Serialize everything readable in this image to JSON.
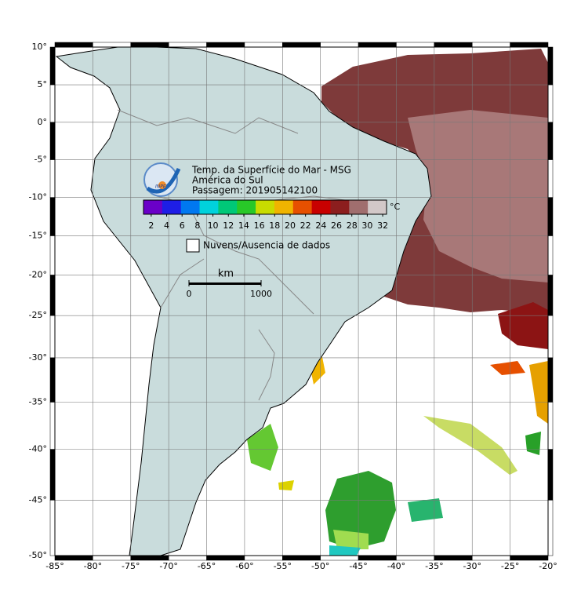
{
  "map": {
    "title_lines": [
      "Temp. da Superfície do Mar - MSG",
      "América do Sul",
      "Passagem: 201905142100"
    ],
    "logo_text": "INPE",
    "xlim": [
      -85,
      -20
    ],
    "ylim": [
      -50,
      10
    ],
    "projection": "mercator",
    "xticks": [
      {
        "value": -85,
        "label": "-85°"
      },
      {
        "value": -80,
        "label": "-80°"
      },
      {
        "value": -75,
        "label": "-75°"
      },
      {
        "value": -70,
        "label": "-70°"
      },
      {
        "value": -65,
        "label": "-65°"
      },
      {
        "value": -60,
        "label": "-60°"
      },
      {
        "value": -55,
        "label": "-55°"
      },
      {
        "value": -50,
        "label": "-50°"
      },
      {
        "value": -45,
        "label": "-45°"
      },
      {
        "value": -40,
        "label": "-40°"
      },
      {
        "value": -35,
        "label": "-35°"
      },
      {
        "value": -30,
        "label": "-30°"
      },
      {
        "value": -25,
        "label": "-25°"
      },
      {
        "value": -20,
        "label": "-20°"
      }
    ],
    "yticks": [
      {
        "value": 10,
        "label": "10°"
      },
      {
        "value": 5,
        "label": "5°"
      },
      {
        "value": 0,
        "label": "0°"
      },
      {
        "value": -5,
        "label": "-5°"
      },
      {
        "value": -10,
        "label": "-10°"
      },
      {
        "value": -15,
        "label": "-15°"
      },
      {
        "value": -20,
        "label": "-20°"
      },
      {
        "value": -25,
        "label": "-25°"
      },
      {
        "value": -30,
        "label": "-30°"
      },
      {
        "value": -35,
        "label": "-35°"
      },
      {
        "value": -40,
        "label": "-40°"
      },
      {
        "value": -45,
        "label": "-45°"
      },
      {
        "value": -50,
        "label": "-50°"
      }
    ],
    "grid": true,
    "colorbar": {
      "lim": [
        1,
        32.5
      ],
      "ticks": [
        2,
        4,
        6,
        8,
        10,
        12,
        14,
        16,
        18,
        20,
        22,
        24,
        26,
        28,
        30,
        32
      ],
      "unit": "°C",
      "colors": [
        "#6a00c8",
        "#1e1ee6",
        "#0078f0",
        "#00d2dc",
        "#00c878",
        "#28c828",
        "#c8dc00",
        "#f0b400",
        "#e65000",
        "#c80000",
        "#8c1e1e",
        "#a06e6e",
        "#d2c8c8"
      ]
    },
    "legend": "Nuvens/Ausencia de dados",
    "scale_bar": {
      "unit": "km",
      "ticks": [
        0,
        1000
      ]
    }
  }
}
